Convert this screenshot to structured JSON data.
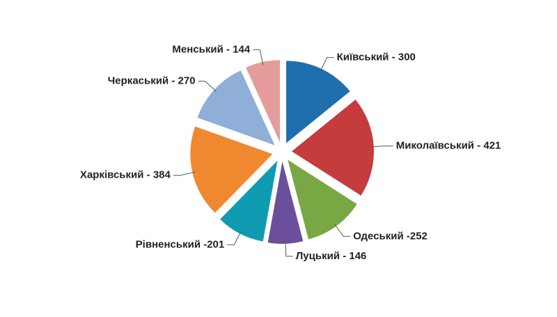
{
  "chart_data": {
    "type": "pie",
    "categories": [
      "Київський - 300",
      "Миколаївський - 421",
      "Одеський -252",
      "Луцький - 146",
      "Рівненський -201",
      "Харківський - 384",
      "Черкаський - 270",
      "Менський - 144"
    ],
    "values": [
      300,
      421,
      252,
      146,
      201,
      384,
      270,
      144
    ],
    "colors": [
      "#1f6fae",
      "#c43c3c",
      "#79a744",
      "#6b4f9c",
      "#0f9cb2",
      "#f0882f",
      "#8fafd8",
      "#e69b9b"
    ]
  }
}
